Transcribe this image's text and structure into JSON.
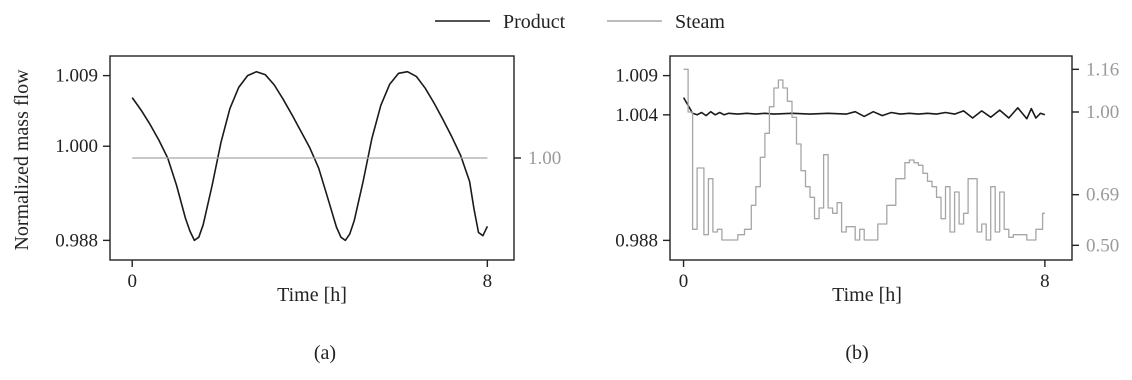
{
  "legend": {
    "items": [
      {
        "label": "Product",
        "color": "#1a1a1a"
      },
      {
        "label": "Steam",
        "color": "#a6a6a6"
      }
    ]
  },
  "chart_data": [
    {
      "type": "line",
      "panel_label": "(a)",
      "xlabel": "Time [h]",
      "ylabel": "Normalized mass flow",
      "xlim": [
        -0.5,
        8.6
      ],
      "ylim": [
        0.9855,
        1.0115
      ],
      "y2lim": [
        0.0,
        2.0
      ],
      "x_ticks": [
        0,
        8
      ],
      "x_tick_labels": [
        "0",
        "8"
      ],
      "y_ticks": [
        0.988,
        1.0,
        1.009
      ],
      "y_tick_labels": [
        "0.988",
        "1.000",
        "1.009"
      ],
      "y2_ticks": [
        1.0
      ],
      "y2_tick_labels": [
        "1.00"
      ],
      "series": [
        {
          "name": "Product",
          "axis": "left",
          "color": "#1a1a1a",
          "x": [
            0,
            0.2,
            0.4,
            0.6,
            0.8,
            1.0,
            1.2,
            1.3,
            1.4,
            1.5,
            1.6,
            1.8,
            2.0,
            2.2,
            2.4,
            2.6,
            2.8,
            3.0,
            3.2,
            3.4,
            3.6,
            3.8,
            4.0,
            4.2,
            4.4,
            4.6,
            4.7,
            4.8,
            4.9,
            5.0,
            5.2,
            5.4,
            5.6,
            5.8,
            6.0,
            6.2,
            6.4,
            6.6,
            6.8,
            7.0,
            7.2,
            7.4,
            7.6,
            7.7,
            7.8,
            7.9,
            8.0
          ],
          "y": [
            1.0062,
            1.0046,
            1.0028,
            1.0008,
            0.9985,
            0.995,
            0.9908,
            0.9892,
            0.988,
            0.9884,
            0.99,
            0.995,
            1.0005,
            1.0048,
            1.0075,
            1.009,
            1.0095,
            1.0091,
            1.0078,
            1.006,
            1.004,
            1.0019,
            0.9998,
            0.9972,
            0.9935,
            0.9897,
            0.9884,
            0.988,
            0.9888,
            0.9905,
            0.9955,
            1.001,
            1.0052,
            1.0079,
            1.0093,
            1.0095,
            1.0089,
            1.0074,
            1.0055,
            1.0034,
            1.0012,
            0.9988,
            0.9955,
            0.992,
            0.989,
            0.9886,
            0.9898
          ]
        },
        {
          "name": "Steam",
          "axis": "right",
          "color": "#a6a6a6",
          "x": [
            0,
            8
          ],
          "y": [
            1.0,
            1.0
          ]
        }
      ]
    },
    {
      "type": "line",
      "panel_label": "(b)",
      "xlabel": "Time [h]",
      "ylabel": "",
      "xlim": [
        -0.3,
        8.6
      ],
      "ylim": [
        0.9855,
        1.0115
      ],
      "y2lim": [
        0.445,
        1.21
      ],
      "x_ticks": [
        0,
        8
      ],
      "x_tick_labels": [
        "0",
        "8"
      ],
      "y_ticks": [
        0.988,
        1.004,
        1.009
      ],
      "y_tick_labels": [
        "0.988",
        "1.004",
        "1.009"
      ],
      "y2_ticks": [
        0.5,
        0.69,
        1.0,
        1.16
      ],
      "y2_tick_labels": [
        "0.50",
        "0.69",
        "1.00",
        "1.16"
      ],
      "series": [
        {
          "name": "Product",
          "axis": "left",
          "color": "#1a1a1a",
          "x": [
            0,
            0.1,
            0.2,
            0.3,
            0.4,
            0.5,
            0.6,
            0.7,
            0.8,
            0.9,
            1.0,
            1.2,
            1.4,
            1.6,
            1.8,
            2.0,
            2.4,
            2.8,
            3.2,
            3.6,
            3.8,
            4.0,
            4.2,
            4.4,
            4.6,
            4.8,
            5.0,
            5.2,
            5.4,
            5.6,
            5.8,
            6.0,
            6.2,
            6.4,
            6.6,
            6.8,
            7.0,
            7.2,
            7.4,
            7.6,
            7.7,
            7.8,
            7.9,
            8.0
          ],
          "y": [
            1.0062,
            1.0052,
            1.0042,
            1.004,
            1.0043,
            1.0039,
            1.0044,
            1.004,
            1.0043,
            1.004,
            1.0042,
            1.0041,
            1.0042,
            1.0041,
            1.0042,
            1.0041,
            1.0042,
            1.0041,
            1.0042,
            1.0041,
            1.0044,
            1.0038,
            1.0044,
            1.0039,
            1.0043,
            1.0041,
            1.0042,
            1.0041,
            1.0042,
            1.0041,
            1.0043,
            1.0041,
            1.0045,
            1.0036,
            1.0045,
            1.0037,
            1.0046,
            1.0036,
            1.0049,
            1.0035,
            1.0048,
            1.0036,
            1.0042,
            1.004
          ]
        },
        {
          "name": "Steam",
          "axis": "right",
          "color": "#a6a6a6",
          "x": [
            0,
            0.1,
            0.2,
            0.3,
            0.45,
            0.55,
            0.65,
            0.75,
            0.85,
            1.2,
            1.35,
            1.5,
            1.6,
            1.7,
            1.8,
            1.9,
            2.0,
            2.1,
            2.2,
            2.3,
            2.4,
            2.5,
            2.6,
            2.7,
            2.8,
            2.9,
            3.0,
            3.1,
            3.2,
            3.3,
            3.4,
            3.5,
            3.6,
            3.8,
            3.9,
            4.0,
            4.1,
            4.3,
            4.5,
            4.7,
            4.9,
            5.0,
            5.1,
            5.2,
            5.3,
            5.4,
            5.5,
            5.6,
            5.7,
            5.8,
            5.9,
            6.0,
            6.1,
            6.2,
            6.3,
            6.5,
            6.6,
            6.7,
            6.8,
            6.9,
            7.0,
            7.1,
            7.2,
            7.3,
            7.6,
            7.8,
            7.95,
            8.0
          ],
          "y": [
            1.16,
            1.0,
            0.56,
            0.79,
            0.54,
            0.75,
            0.55,
            0.56,
            0.52,
            0.54,
            0.56,
            0.65,
            0.72,
            0.83,
            0.92,
            1.02,
            1.09,
            1.12,
            1.09,
            1.04,
            0.98,
            0.88,
            0.78,
            0.72,
            0.68,
            0.6,
            0.64,
            0.84,
            0.64,
            0.62,
            0.66,
            0.55,
            0.57,
            0.52,
            0.56,
            0.52,
            0.52,
            0.58,
            0.65,
            0.75,
            0.81,
            0.82,
            0.81,
            0.8,
            0.77,
            0.74,
            0.72,
            0.68,
            0.6,
            0.72,
            0.55,
            0.7,
            0.58,
            0.62,
            0.75,
            0.55,
            0.58,
            0.52,
            0.72,
            0.55,
            0.7,
            0.56,
            0.53,
            0.54,
            0.52,
            0.56,
            0.62,
            0.62
          ]
        }
      ]
    }
  ]
}
